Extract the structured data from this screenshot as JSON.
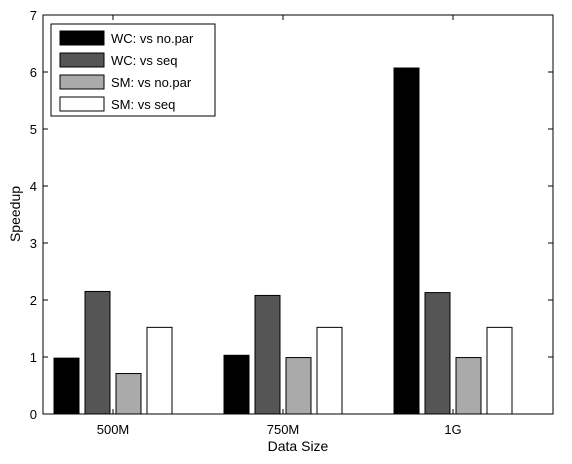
{
  "chart_data": {
    "type": "bar",
    "title": "",
    "xlabel": "Data Size",
    "ylabel": "Speedup",
    "ylim": [
      0,
      7
    ],
    "yticks": [
      "0",
      "1",
      "2",
      "3",
      "4",
      "5",
      "6",
      "7"
    ],
    "categories": [
      "500M",
      "750M",
      "1G"
    ],
    "legend_position": "top-left",
    "grid": false,
    "series": [
      {
        "name": "WC: vs no.par",
        "color": "#000000",
        "values": [
          0.98,
          1.03,
          6.07
        ]
      },
      {
        "name": "WC: vs seq",
        "color": "#555555",
        "values": [
          2.15,
          2.08,
          2.13
        ]
      },
      {
        "name": "SM: vs no.par",
        "color": "#aaaaaa",
        "values": [
          0.71,
          0.99,
          0.99
        ]
      },
      {
        "name": "SM: vs seq",
        "color": "#ffffff",
        "values": [
          1.52,
          1.52,
          1.52
        ]
      }
    ]
  }
}
